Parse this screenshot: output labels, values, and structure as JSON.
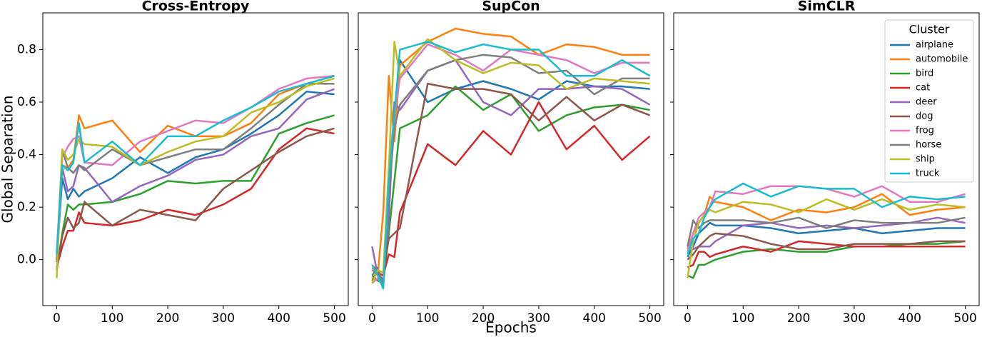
{
  "chart_data": [
    {
      "type": "line",
      "title": "Cross-Entropy",
      "ylabel": "Global Separation",
      "x": [
        0,
        10,
        20,
        30,
        40,
        50,
        100,
        150,
        200,
        250,
        300,
        350,
        400,
        450,
        500
      ],
      "xlim": [
        -25,
        525
      ],
      "xticks": [
        0,
        100,
        200,
        300,
        400,
        500
      ],
      "ylim": [
        -0.175,
        0.94
      ],
      "yticks": [
        {
          "value": 0,
          "label": "0.0"
        },
        0.2,
        0.4,
        0.6,
        0.8
      ],
      "series": [
        {
          "name": "airplane",
          "color": "#1f77b4",
          "values": [
            0.0,
            0.31,
            0.23,
            0.27,
            0.24,
            0.26,
            0.31,
            0.39,
            0.33,
            0.39,
            0.42,
            0.48,
            0.55,
            0.64,
            0.63
          ]
        },
        {
          "name": "automobile",
          "color": "#ff7f0e",
          "values": [
            0.0,
            0.36,
            0.35,
            0.38,
            0.55,
            0.5,
            0.53,
            0.41,
            0.51,
            0.47,
            0.47,
            0.52,
            0.63,
            0.67,
            0.7
          ]
        },
        {
          "name": "bird",
          "color": "#2ca02c",
          "values": [
            -0.04,
            0.1,
            0.21,
            0.19,
            0.21,
            0.21,
            0.22,
            0.25,
            0.3,
            0.29,
            0.3,
            0.3,
            0.48,
            0.52,
            0.55
          ]
        },
        {
          "name": "cat",
          "color": "#d62728",
          "values": [
            -0.03,
            0.05,
            0.11,
            0.11,
            0.18,
            0.14,
            0.13,
            0.15,
            0.19,
            0.17,
            0.21,
            0.27,
            0.42,
            0.5,
            0.48
          ]
        },
        {
          "name": "deer",
          "color": "#9467bd",
          "values": [
            0.0,
            0.35,
            0.26,
            0.28,
            0.36,
            0.35,
            0.22,
            0.28,
            0.32,
            0.38,
            0.4,
            0.47,
            0.5,
            0.61,
            0.65
          ]
        },
        {
          "name": "dog",
          "color": "#8c564b",
          "values": [
            -0.04,
            0.09,
            0.16,
            0.12,
            0.14,
            0.22,
            0.13,
            0.19,
            0.17,
            0.15,
            0.27,
            0.34,
            0.41,
            0.47,
            0.5
          ]
        },
        {
          "name": "frog",
          "color": "#e377c2",
          "values": [
            0.03,
            0.39,
            0.43,
            0.46,
            0.47,
            0.37,
            0.36,
            0.45,
            0.49,
            0.53,
            0.52,
            0.58,
            0.65,
            0.69,
            0.7
          ]
        },
        {
          "name": "horse",
          "color": "#7f7f7f",
          "values": [
            -0.01,
            0.42,
            0.35,
            0.33,
            0.36,
            0.34,
            0.42,
            0.36,
            0.39,
            0.42,
            0.42,
            0.5,
            0.59,
            0.67,
            0.67
          ]
        },
        {
          "name": "ship",
          "color": "#bcbd22",
          "values": [
            -0.07,
            0.42,
            0.38,
            0.4,
            0.46,
            0.44,
            0.43,
            0.36,
            0.41,
            0.45,
            0.47,
            0.56,
            0.6,
            0.66,
            0.69
          ]
        },
        {
          "name": "truck",
          "color": "#17becf",
          "values": [
            0.02,
            0.36,
            0.34,
            0.37,
            0.52,
            0.37,
            0.45,
            0.36,
            0.47,
            0.47,
            0.53,
            0.58,
            0.64,
            0.67,
            0.7
          ]
        }
      ]
    },
    {
      "type": "line",
      "title": "SupCon",
      "xlabel": "Epochs",
      "x": [
        0,
        10,
        20,
        30,
        40,
        50,
        100,
        150,
        200,
        250,
        300,
        350,
        400,
        450,
        500
      ],
      "xlim": [
        -25,
        525
      ],
      "xticks": [
        0,
        100,
        200,
        300,
        400,
        500
      ],
      "ylim": [
        -0.175,
        0.94
      ],
      "yticks": [
        0,
        0.2,
        0.4,
        0.6,
        0.8
      ],
      "show_ytick_labels": false,
      "series": [
        {
          "name": "airplane",
          "color": "#1f77b4",
          "values": [
            -0.04,
            -0.05,
            -0.08,
            0.24,
            0.55,
            0.76,
            0.6,
            0.65,
            0.68,
            0.65,
            0.61,
            0.68,
            0.66,
            0.66,
            0.65
          ]
        },
        {
          "name": "automobile",
          "color": "#ff7f0e",
          "values": [
            -0.03,
            -0.06,
            0.18,
            0.7,
            0.45,
            0.74,
            0.83,
            0.88,
            0.86,
            0.85,
            0.78,
            0.82,
            0.81,
            0.78,
            0.78
          ]
        },
        {
          "name": "bird",
          "color": "#2ca02c",
          "values": [
            -0.06,
            -0.08,
            -0.09,
            0.1,
            0.3,
            0.5,
            0.55,
            0.66,
            0.57,
            0.63,
            0.49,
            0.55,
            0.58,
            0.59,
            0.57
          ]
        },
        {
          "name": "cat",
          "color": "#d62728",
          "values": [
            -0.02,
            -0.05,
            -0.06,
            0.02,
            0.01,
            0.18,
            0.44,
            0.36,
            0.49,
            0.4,
            0.6,
            0.42,
            0.51,
            0.38,
            0.47
          ]
        },
        {
          "name": "deer",
          "color": "#9467bd",
          "values": [
            0.05,
            -0.06,
            -0.09,
            0.15,
            0.6,
            0.57,
            0.72,
            0.76,
            0.6,
            0.55,
            0.65,
            0.65,
            0.66,
            0.65,
            0.59
          ]
        },
        {
          "name": "dog",
          "color": "#8c564b",
          "values": [
            -0.08,
            -0.04,
            -0.05,
            0.08,
            0.1,
            0.12,
            0.67,
            0.65,
            0.65,
            0.63,
            0.53,
            0.62,
            0.53,
            0.59,
            0.55
          ]
        },
        {
          "name": "frog",
          "color": "#e377c2",
          "values": [
            -0.09,
            -0.07,
            -0.1,
            0.35,
            0.55,
            0.69,
            0.82,
            0.78,
            0.72,
            0.8,
            0.78,
            0.76,
            0.71,
            0.75,
            0.75
          ]
        },
        {
          "name": "horse",
          "color": "#7f7f7f",
          "values": [
            -0.06,
            -0.03,
            -0.1,
            0.25,
            0.5,
            0.59,
            0.72,
            0.76,
            0.78,
            0.77,
            0.71,
            0.72,
            0.63,
            0.69,
            0.69
          ]
        },
        {
          "name": "ship",
          "color": "#bcbd22",
          "values": [
            -0.09,
            -0.04,
            -0.05,
            0.35,
            0.83,
            0.7,
            0.84,
            0.76,
            0.71,
            0.75,
            0.74,
            0.65,
            0.69,
            0.68,
            0.67
          ]
        },
        {
          "name": "truck",
          "color": "#17becf",
          "values": [
            -0.02,
            -0.06,
            -0.11,
            0.3,
            0.55,
            0.8,
            0.83,
            0.79,
            0.82,
            0.8,
            0.8,
            0.7,
            0.7,
            0.76,
            0.7
          ]
        }
      ]
    },
    {
      "type": "line",
      "title": "SimCLR",
      "legend_title": "Cluster",
      "legend": "upper right",
      "x": [
        0,
        10,
        20,
        30,
        40,
        50,
        100,
        150,
        200,
        250,
        300,
        350,
        400,
        450,
        500
      ],
      "xlim": [
        -25,
        525
      ],
      "xticks": [
        0,
        100,
        200,
        300,
        400,
        500
      ],
      "ylim": [
        -0.175,
        0.94
      ],
      "yticks": [
        0,
        0.2,
        0.4,
        0.6,
        0.8
      ],
      "show_ytick_labels": false,
      "series": [
        {
          "name": "airplane",
          "color": "#1f77b4",
          "values": [
            0.01,
            0.05,
            0.1,
            0.12,
            0.14,
            0.13,
            0.13,
            0.12,
            0.1,
            0.11,
            0.12,
            0.1,
            0.11,
            0.12,
            0.12
          ]
        },
        {
          "name": "automobile",
          "color": "#ff7f0e",
          "values": [
            0.04,
            0.1,
            0.14,
            0.17,
            0.24,
            0.22,
            0.2,
            0.15,
            0.19,
            0.18,
            0.2,
            0.25,
            0.17,
            0.19,
            0.2
          ]
        },
        {
          "name": "bird",
          "color": "#2ca02c",
          "values": [
            -0.06,
            -0.07,
            -0.02,
            -0.02,
            -0.01,
            0.0,
            0.03,
            0.04,
            0.03,
            0.03,
            0.05,
            0.05,
            0.06,
            0.06,
            0.07
          ]
        },
        {
          "name": "cat",
          "color": "#d62728",
          "values": [
            -0.03,
            -0.02,
            0.03,
            0.03,
            0.01,
            0.02,
            0.05,
            0.03,
            0.07,
            0.06,
            0.05,
            0.05,
            0.05,
            0.05,
            0.05
          ]
        },
        {
          "name": "deer",
          "color": "#9467bd",
          "values": [
            0.05,
            0.04,
            0.05,
            0.05,
            0.05,
            0.07,
            0.13,
            0.14,
            0.12,
            0.13,
            0.12,
            0.13,
            0.14,
            0.16,
            0.14
          ]
        },
        {
          "name": "dog",
          "color": "#8c564b",
          "values": [
            0.0,
            0.02,
            0.05,
            0.07,
            0.09,
            0.1,
            0.09,
            0.06,
            0.04,
            0.04,
            0.06,
            0.06,
            0.06,
            0.07,
            0.07
          ]
        },
        {
          "name": "frog",
          "color": "#e377c2",
          "values": [
            0.03,
            0.1,
            0.16,
            0.18,
            0.2,
            0.26,
            0.25,
            0.28,
            0.28,
            0.27,
            0.24,
            0.28,
            0.22,
            0.22,
            0.25
          ]
        },
        {
          "name": "horse",
          "color": "#7f7f7f",
          "values": [
            0.05,
            0.15,
            0.12,
            0.14,
            0.15,
            0.15,
            0.15,
            0.14,
            0.16,
            0.12,
            0.15,
            0.14,
            0.14,
            0.14,
            0.16
          ]
        },
        {
          "name": "ship",
          "color": "#bcbd22",
          "values": [
            -0.07,
            0.07,
            0.14,
            0.17,
            0.19,
            0.18,
            0.22,
            0.21,
            0.18,
            0.23,
            0.19,
            0.23,
            0.19,
            0.21,
            0.2
          ]
        },
        {
          "name": "truck",
          "color": "#17becf",
          "values": [
            0.02,
            0.08,
            0.1,
            0.16,
            0.2,
            0.23,
            0.29,
            0.24,
            0.28,
            0.27,
            0.27,
            0.2,
            0.24,
            0.23,
            0.24
          ]
        }
      ]
    }
  ]
}
